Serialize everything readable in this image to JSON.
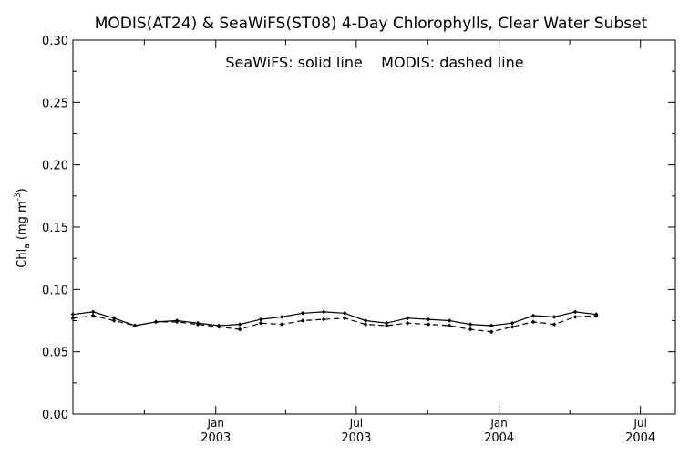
{
  "chart_data": {
    "type": "line",
    "title": "MODIS(AT24) & SeaWiFS(ST08) 4-Day Chlorophylls, Clear Water Subset",
    "annotation": "SeaWiFS: solid line    MODIS: dashed line",
    "ylabel": "Chl",
    "ylabel_subscript": "a",
    "ylabel_unit_prefix": "(mg m",
    "ylabel_unit_exponent": "-3",
    "ylabel_unit_suffix": ")",
    "xlim": [
      "2002-07-01",
      "2004-08-15"
    ],
    "ylim": [
      0.0,
      0.3
    ],
    "yticks": [
      "0.00",
      "0.05",
      "0.10",
      "0.15",
      "0.20",
      "0.25",
      "0.30"
    ],
    "xticks": [
      {
        "date": "2003-01-01",
        "month": "Jan",
        "year": "2003"
      },
      {
        "date": "2003-07-01",
        "month": "Jul",
        "year": "2003"
      },
      {
        "date": "2004-01-01",
        "month": "Jan",
        "year": "2004"
      },
      {
        "date": "2004-07-01",
        "month": "Jul",
        "year": "2004"
      }
    ],
    "grid": false,
    "series": [
      {
        "name": "SeaWiFS",
        "style": "solid",
        "color": "#000000",
        "points": [
          {
            "x": "2002-07-01",
            "y": 0.08
          },
          {
            "x": "2002-07-27",
            "y": 0.082
          },
          {
            "x": "2002-08-23",
            "y": 0.077
          },
          {
            "x": "2002-09-19",
            "y": 0.071
          },
          {
            "x": "2002-10-16",
            "y": 0.074
          },
          {
            "x": "2002-11-12",
            "y": 0.075
          },
          {
            "x": "2002-12-09",
            "y": 0.073
          },
          {
            "x": "2003-01-05",
            "y": 0.071
          },
          {
            "x": "2003-02-01",
            "y": 0.072
          },
          {
            "x": "2003-02-28",
            "y": 0.076
          },
          {
            "x": "2003-03-27",
            "y": 0.078
          },
          {
            "x": "2003-04-23",
            "y": 0.081
          },
          {
            "x": "2003-05-20",
            "y": 0.082
          },
          {
            "x": "2003-06-16",
            "y": 0.081
          },
          {
            "x": "2003-07-13",
            "y": 0.075
          },
          {
            "x": "2003-08-09",
            "y": 0.073
          },
          {
            "x": "2003-09-05",
            "y": 0.077
          },
          {
            "x": "2003-10-02",
            "y": 0.076
          },
          {
            "x": "2003-10-29",
            "y": 0.075
          },
          {
            "x": "2003-11-25",
            "y": 0.072
          },
          {
            "x": "2003-12-22",
            "y": 0.071
          },
          {
            "x": "2004-01-18",
            "y": 0.073
          },
          {
            "x": "2004-02-14",
            "y": 0.079
          },
          {
            "x": "2004-03-12",
            "y": 0.078
          },
          {
            "x": "2004-04-08",
            "y": 0.082
          },
          {
            "x": "2004-05-05",
            "y": 0.08
          }
        ]
      },
      {
        "name": "MODIS",
        "style": "dashed",
        "color": "#000000",
        "points": [
          {
            "x": "2002-07-01",
            "y": 0.077
          },
          {
            "x": "2002-07-27",
            "y": 0.079
          },
          {
            "x": "2002-08-23",
            "y": 0.075
          },
          {
            "x": "2002-09-19",
            "y": 0.071
          },
          {
            "x": "2002-10-16",
            "y": 0.074
          },
          {
            "x": "2002-11-12",
            "y": 0.074
          },
          {
            "x": "2002-12-09",
            "y": 0.072
          },
          {
            "x": "2003-01-05",
            "y": 0.07
          },
          {
            "x": "2003-02-01",
            "y": 0.068
          },
          {
            "x": "2003-02-28",
            "y": 0.073
          },
          {
            "x": "2003-03-27",
            "y": 0.072
          },
          {
            "x": "2003-04-23",
            "y": 0.075
          },
          {
            "x": "2003-05-20",
            "y": 0.076
          },
          {
            "x": "2003-06-16",
            "y": 0.077
          },
          {
            "x": "2003-07-13",
            "y": 0.072
          },
          {
            "x": "2003-08-09",
            "y": 0.071
          },
          {
            "x": "2003-09-05",
            "y": 0.073
          },
          {
            "x": "2003-10-02",
            "y": 0.072
          },
          {
            "x": "2003-10-29",
            "y": 0.071
          },
          {
            "x": "2003-11-25",
            "y": 0.068
          },
          {
            "x": "2003-12-22",
            "y": 0.066
          },
          {
            "x": "2004-01-18",
            "y": 0.07
          },
          {
            "x": "2004-02-14",
            "y": 0.074
          },
          {
            "x": "2004-03-12",
            "y": 0.072
          },
          {
            "x": "2004-04-08",
            "y": 0.078
          },
          {
            "x": "2004-05-05",
            "y": 0.079
          }
        ]
      }
    ]
  }
}
